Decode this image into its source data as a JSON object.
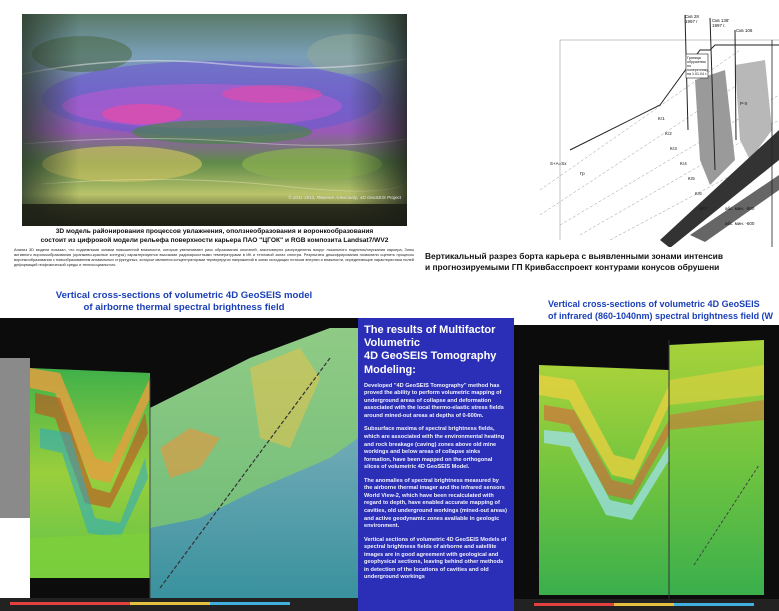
{
  "top_left": {
    "watermark": "© 2011-2013, Яковлев Александр, 4D GeoSEIS Project",
    "caption_line1": "3D модель районирования процессов увлажнения, оползнеобразования и воронкообразования",
    "caption_line2": "состоит из цифровой модели рельефа поверхности карьера ПАО \"ЦГОК\" и RGB композита Landsat7/WV2",
    "description": "Анализ 3D модели показал, что подземными зонами повышенной влажности, которые увеличивают риск образования оползней, закономерно распределены вокруг локального поднятия/опускания карьера; Зоны активного воронкообразования (оранжево-красные контуры) характеризуются высокими радиояркостными температурами в ИК и тепловой зонах спектра. Результаты дешифрирования позволили оценить процессы воронкообразования с новообразованием аномальных структурных, которые являются концентраторами термоупругих напряжений в зонах исходящих потоков энергии и влажности, определяющие характеристики полей деформаций геофизической среды и техносоциального."
  },
  "top_right": {
    "caption_line1": "Вертикальный разрез борта карьера с выявленными зонами интенсив",
    "caption_line2": "и прогнозируемыми ГП Кривбасспроект контурами конусов обрушени",
    "labels": [
      "Скв 28",
      "1997 г",
      "Скв 138'",
      "1997 г.",
      "Скв 106",
      "Граница",
      "обрушения",
      "по",
      "поперечнику",
      "на 1.01.04 г.",
      "Кг1",
      "Кг2",
      "Кг3",
      "Кг4",
      "Кг5",
      "Кг6",
      "Кг7",
      "S+A=Sx",
      "Гр",
      "Р-II",
      "абс. мин. -500",
      "абс. мин. -600"
    ]
  },
  "left_section": {
    "title_line1": "Vertical cross-sections of volumetric 4D GeoSEIS model",
    "title_line2": "of airborne thermal spectral brightness field"
  },
  "results": {
    "heading_line1": "The results of Multifactor Volumetric",
    "heading_line2": "4D GeoSEIS Tomography Modeling:",
    "para1": "Developed \"4D GeoSEIS Tomography\" method has proved the ability to perform volumetric mapping of underground areas of collapse and deformation associated with the local thermo-elastic stress fields around mined-out areas at depths of 0-600m.",
    "para2": "Subsurface maxima of spectral brightness fields, which are associated with the environmental heating and rock breakage (caving) zones above old mine workings and below areas of collapse sinks formation, have been mapped on the orthogonal slices of volumetric 4D GeoSEIS Model.",
    "para3": "The anomalies of spectral brightness measured by the airborne thermal imager and the infrared sensors World View-2, which have been recalculated with regard to depth, have enabled accurate mapping of cavities, old underground workings (mined-out areas) and active geodynamic zones available in geologic environment.",
    "para4": "Vertical sections of volumetric 4D GeoSEIS Models of spectral brightness fields of airborne and satellite images are in good agreement with geological and geophysical sections, leaving behind other methods in detection of the locations of cavities and old underground workings"
  },
  "right_section": {
    "title_line1": "Vertical cross-sections of volumetric 4D GeoSEIS",
    "title_line2": "of infrared (860-1040nm) spectral brightness field (W"
  },
  "colors": {
    "title_blue": "#1a3fb8",
    "panel_blue": "#2b2fb8",
    "dark_bg": "#0c0c0c"
  }
}
